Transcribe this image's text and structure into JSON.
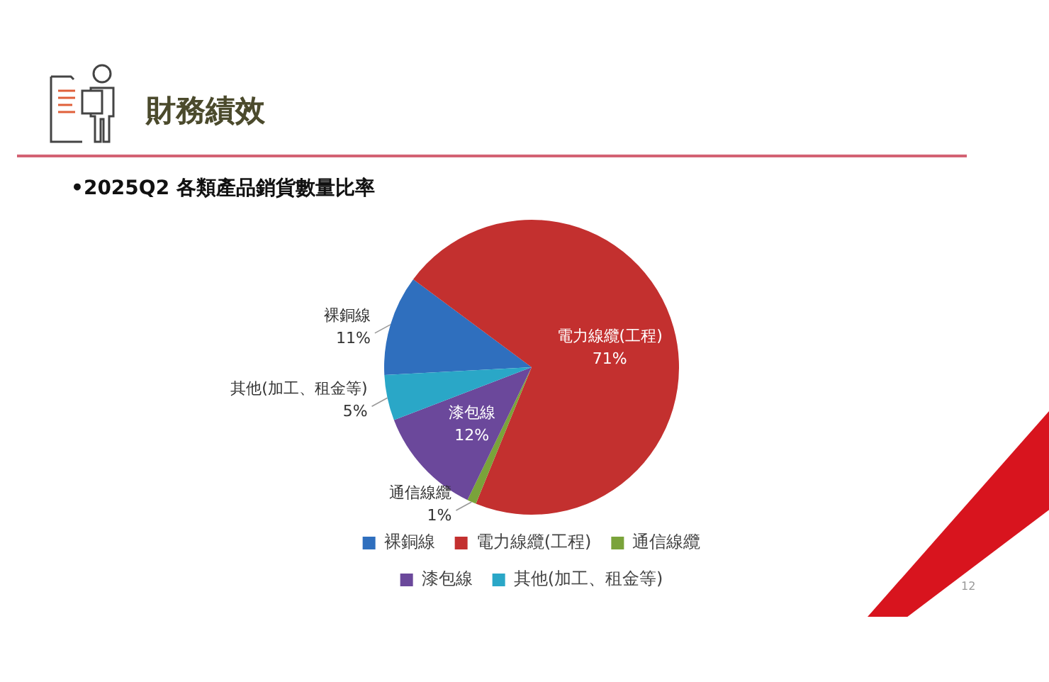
{
  "chart_data": {
    "type": "pie",
    "title": "財務績效",
    "subtitle": "•2025Q2  各類產品銷貨數量比率",
    "categories": [
      "裸銅線",
      "電力線纜(工程)",
      "通信線纜",
      "漆包線",
      "其他(加工、租金等)"
    ],
    "values": [
      11,
      71,
      1,
      12,
      5
    ],
    "value_labels": [
      "11%",
      "71%",
      "1%",
      "12%",
      "5%"
    ],
    "colors": [
      "#2f6fbe",
      "#c3302f",
      "#7aa33a",
      "#6b489b",
      "#2aa7c7"
    ],
    "legend": "bottom",
    "annotations": [
      "12"
    ]
  }
}
